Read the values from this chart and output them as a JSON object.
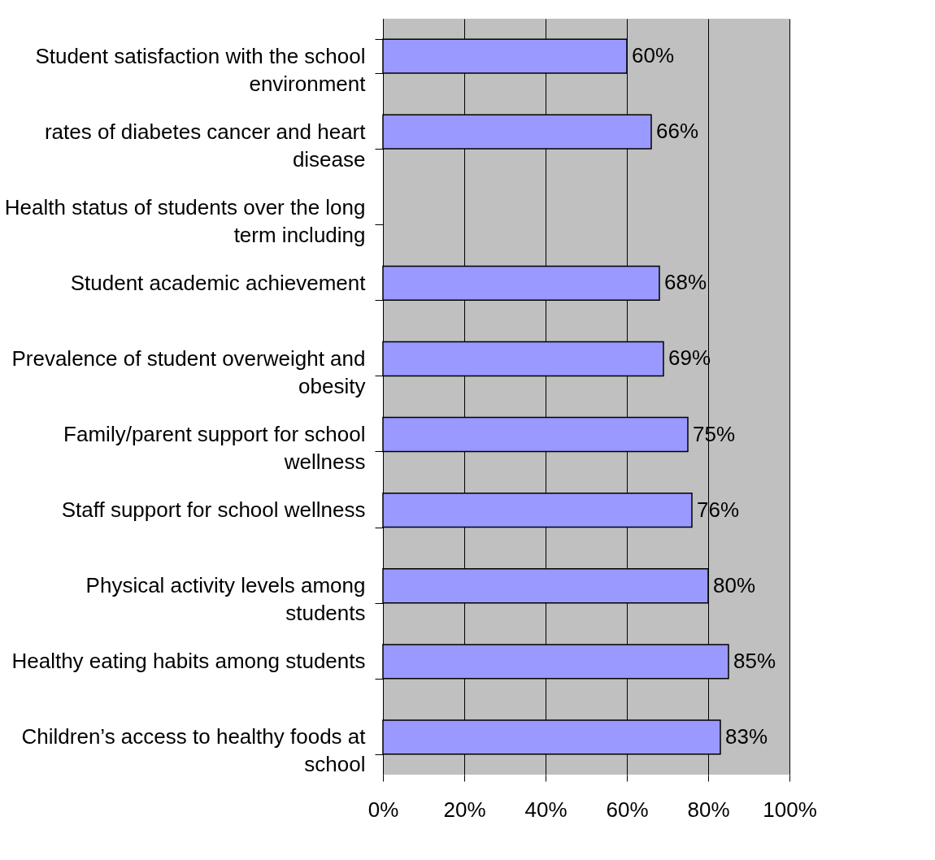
{
  "chart_data": {
    "type": "bar",
    "orientation": "horizontal",
    "categories": [
      "Student satisfaction with the school\nenvironment",
      "rates of diabetes cancer and heart\ndisease",
      "Health status of students over the long\nterm including",
      "Student academic achievement",
      "Prevalence of student overweight and\nobesity",
      "Family/parent support for school\nwellness",
      "Staff support for school wellness",
      "Physical activity levels among\nstudents",
      "Healthy eating habits among students",
      "Children’s access to healthy foods at\nschool"
    ],
    "values": [
      60,
      66,
      null,
      68,
      69,
      75,
      76,
      80,
      85,
      83
    ],
    "value_labels": [
      "60%",
      "66%",
      null,
      "68%",
      "69%",
      "75%",
      "76%",
      "80%",
      "85%",
      "83%"
    ],
    "color": "#9999ff",
    "xlim": [
      0,
      100
    ],
    "xticks": [
      {
        "value": 0,
        "label": "0%"
      },
      {
        "value": 20,
        "label": "20%"
      },
      {
        "value": 40,
        "label": "40%"
      },
      {
        "value": 60,
        "label": "60%"
      },
      {
        "value": 80,
        "label": "80%"
      },
      {
        "value": 100,
        "label": "100%"
      }
    ],
    "grid": "x"
  }
}
